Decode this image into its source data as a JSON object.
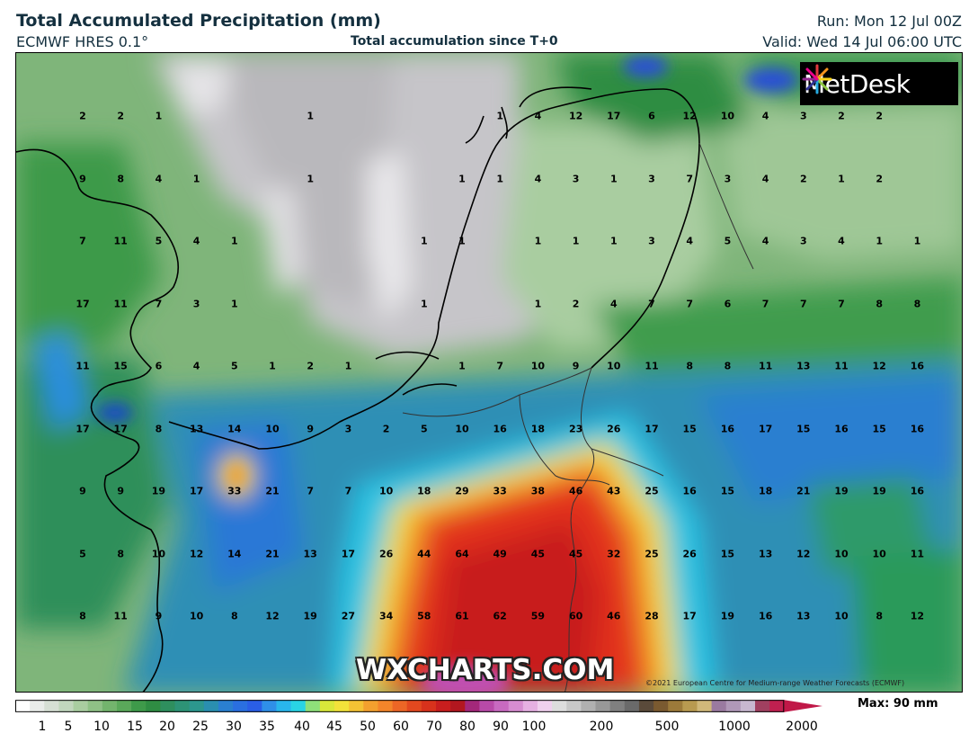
{
  "header": {
    "title": "Total Accumulated Precipitation (mm)",
    "model": "ECMWF HRES 0.1°",
    "accumulation": "Total accumulation since T+0",
    "run": "Run: Mon 12 Jul 00Z",
    "valid": "Valid: Wed 14 Jul 06:00 UTC"
  },
  "branding": {
    "logo_text": "MetDesk",
    "watermark": "WXCHARTS.COM",
    "copyright": "©2021 European Centre for Medium-range Weather Forecasts (ECMWF)"
  },
  "legend": {
    "max_label": "Max: 90 mm",
    "ticks": [
      "1",
      "5",
      "10",
      "15",
      "20",
      "25",
      "30",
      "35",
      "40",
      "45",
      "50",
      "60",
      "70",
      "80",
      "90",
      "100",
      "200",
      "500",
      "1000",
      "2000"
    ]
  },
  "grid_values": [
    [
      "2",
      "2",
      "1",
      "",
      "",
      "",
      "1",
      "",
      "",
      "",
      "",
      "1",
      "4",
      "12",
      "17",
      "6",
      "12",
      "10",
      "4",
      "3",
      "2",
      "2"
    ],
    [
      "9",
      "8",
      "4",
      "1",
      "",
      "",
      "1",
      "",
      "",
      "",
      "1",
      "1",
      "4",
      "3",
      "1",
      "3",
      "7",
      "3",
      "4",
      "2",
      "1",
      "2"
    ],
    [
      "7",
      "11",
      "5",
      "4",
      "1",
      "",
      "",
      "",
      "",
      "1",
      "1",
      "",
      "1",
      "1",
      "1",
      "3",
      "4",
      "5",
      "4",
      "3",
      "4",
      "1",
      "1"
    ],
    [
      "17",
      "11",
      "7",
      "3",
      "1",
      "",
      "",
      "",
      "",
      "1",
      "",
      "",
      "1",
      "2",
      "4",
      "7",
      "7",
      "6",
      "7",
      "7",
      "7",
      "8",
      "8"
    ],
    [
      "11",
      "15",
      "6",
      "4",
      "5",
      "1",
      "2",
      "1",
      "",
      "",
      "1",
      "7",
      "10",
      "9",
      "10",
      "11",
      "8",
      "8",
      "11",
      "13",
      "11",
      "12",
      "16"
    ],
    [
      "17",
      "17",
      "8",
      "13",
      "14",
      "10",
      "9",
      "3",
      "2",
      "5",
      "10",
      "16",
      "18",
      "23",
      "26",
      "17",
      "15",
      "16",
      "17",
      "15",
      "16",
      "15",
      "16"
    ],
    [
      "9",
      "9",
      "19",
      "17",
      "33",
      "21",
      "7",
      "7",
      "10",
      "18",
      "29",
      "33",
      "38",
      "46",
      "43",
      "25",
      "16",
      "15",
      "18",
      "21",
      "19",
      "19",
      "16"
    ],
    [
      "5",
      "8",
      "10",
      "12",
      "14",
      "21",
      "13",
      "17",
      "26",
      "44",
      "64",
      "49",
      "45",
      "45",
      "32",
      "25",
      "26",
      "15",
      "13",
      "12",
      "10",
      "10",
      "11"
    ],
    [
      "8",
      "11",
      "9",
      "10",
      "8",
      "12",
      "19",
      "27",
      "34",
      "58",
      "61",
      "62",
      "59",
      "60",
      "46",
      "28",
      "17",
      "19",
      "16",
      "13",
      "10",
      "8",
      "12"
    ]
  ]
}
